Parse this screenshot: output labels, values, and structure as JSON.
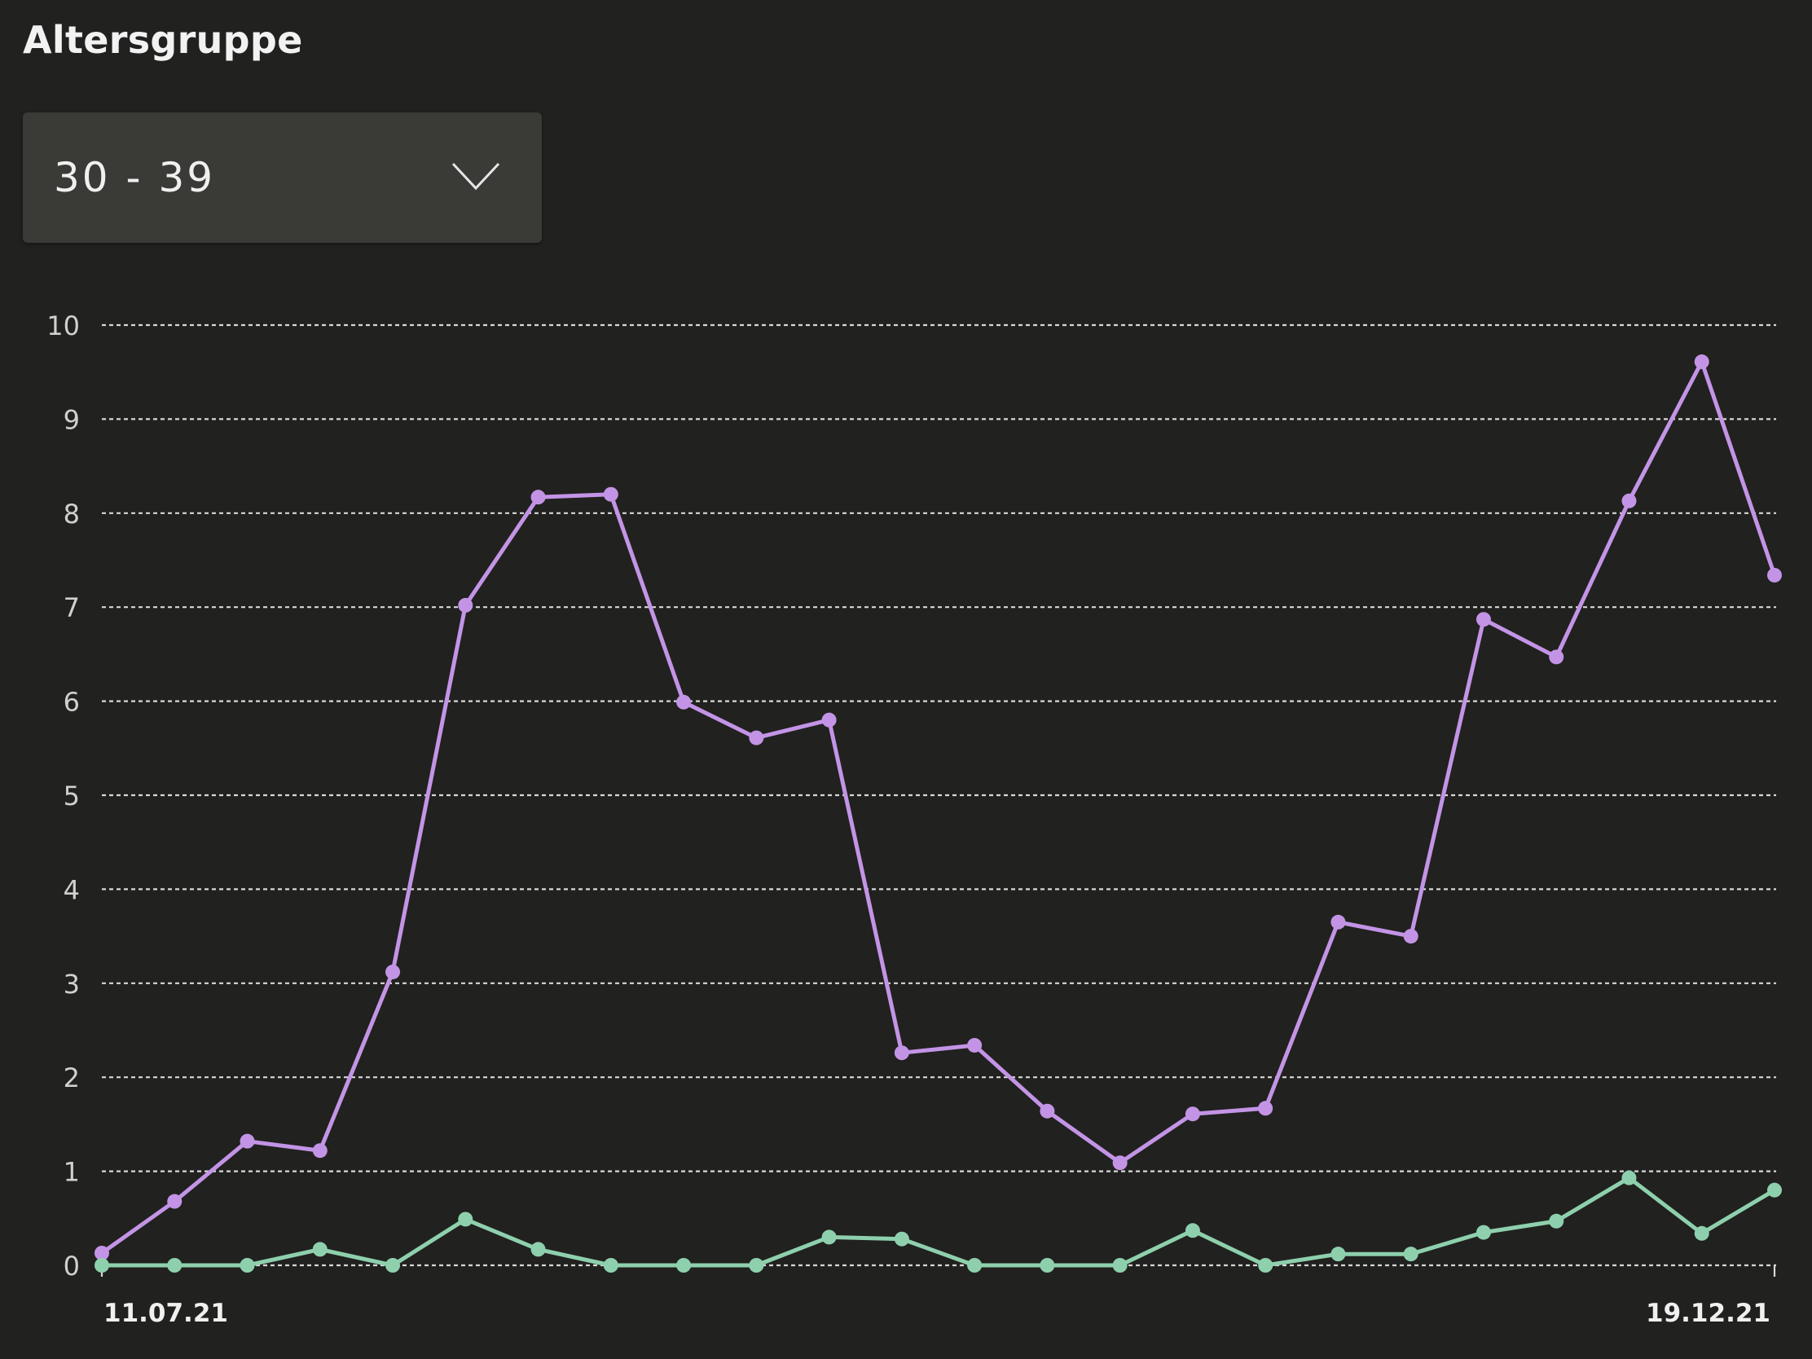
{
  "header": {
    "title": "Altersgruppe"
  },
  "age_select": {
    "selected": "30 - 39",
    "icon": "chevron-down-icon"
  },
  "colors": {
    "background": "#21211f",
    "series_purple": "#c394e6",
    "series_green": "#8ed0ad",
    "grid": "#d8d8d8",
    "axis_text": "#d0d0d0"
  },
  "chart_data": {
    "type": "line",
    "title": "",
    "xlabel": "",
    "ylabel": "",
    "ylim": [
      0,
      10
    ],
    "yticks": [
      "0",
      "1",
      "2",
      "3",
      "4",
      "5",
      "6",
      "7",
      "8",
      "9",
      "10"
    ],
    "x_tick_labels": [
      "11.07.21",
      "19.12.21"
    ],
    "grid": true,
    "x": [
      "11.07.21",
      "18.07.21",
      "25.07.21",
      "01.08.21",
      "08.08.21",
      "15.08.21",
      "22.08.21",
      "29.08.21",
      "05.09.21",
      "12.09.21",
      "19.09.21",
      "26.09.21",
      "03.10.21",
      "10.10.21",
      "17.10.21",
      "24.10.21",
      "31.10.21",
      "07.11.21",
      "14.11.21",
      "21.11.21",
      "28.11.21",
      "05.12.21",
      "12.12.21",
      "19.12.21"
    ],
    "series": [
      {
        "color": "#c394e6",
        "values": [
          0.13,
          0.68,
          1.32,
          1.22,
          3.12,
          7.02,
          8.17,
          8.2,
          5.99,
          5.61,
          5.8,
          2.26,
          2.34,
          1.64,
          1.09,
          1.61,
          1.67,
          3.65,
          3.5,
          6.87,
          6.47,
          8.13,
          9.61,
          7.34
        ]
      },
      {
        "color": "#8ed0ad",
        "values": [
          0,
          0,
          0,
          0.17,
          0,
          0.49,
          0.17,
          0,
          0,
          0,
          0.3,
          0.28,
          0,
          0,
          0,
          0.37,
          0,
          0.12,
          0.12,
          0.35,
          0.47,
          0.93,
          0.34,
          0.8
        ]
      }
    ]
  }
}
